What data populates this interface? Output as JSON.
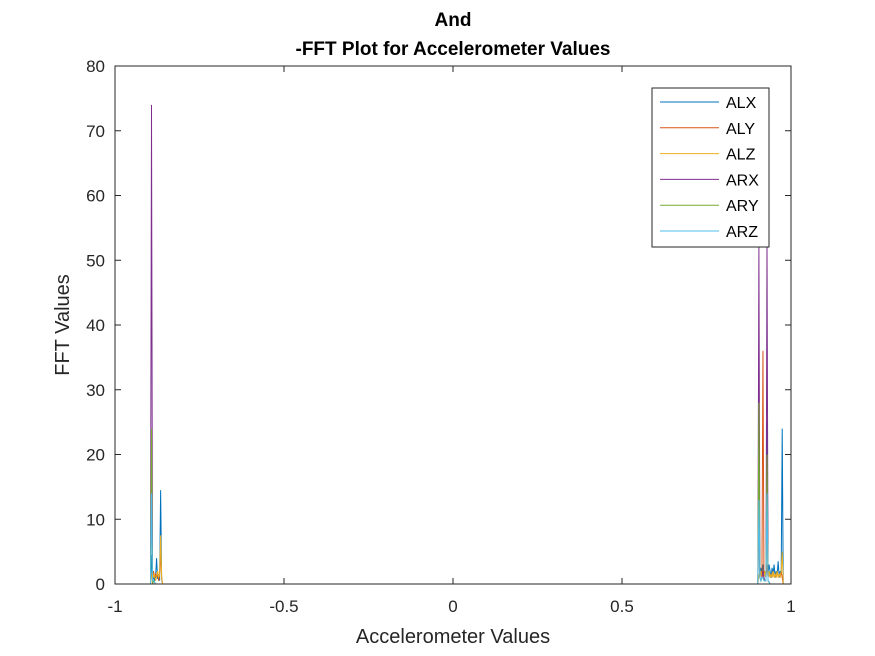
{
  "chart_data": {
    "type": "line",
    "title_lines": [
      "And",
      "-FFT Plot for Accelerometer Values"
    ],
    "xlabel": "Accelerometer Values",
    "ylabel": "FFT Values",
    "xlim": [
      -1,
      1
    ],
    "ylim": [
      0,
      80
    ],
    "xticks": [
      -1,
      -0.5,
      0,
      0.5,
      1
    ],
    "xtick_labels": [
      "-1",
      "-0.5",
      "0",
      "0.5",
      "1"
    ],
    "yticks": [
      0,
      10,
      20,
      30,
      40,
      50,
      60,
      70,
      80
    ],
    "ytick_labels": [
      "0",
      "10",
      "20",
      "30",
      "40",
      "50",
      "60",
      "70",
      "80"
    ],
    "grid": false,
    "legend": "top-right",
    "series": [
      {
        "name": "ALX",
        "color": "#0072BD",
        "x": [
          -0.895,
          -0.892,
          -0.889,
          -0.886,
          -0.883,
          -0.88,
          -0.877,
          -0.874,
          -0.871,
          -0.868,
          -0.865,
          -0.862,
          -0.859,
          0.902,
          0.905,
          0.908,
          0.911,
          0.914,
          0.917,
          0.92,
          0.923,
          0.926,
          0.929,
          0.932,
          0.935,
          0.938,
          0.941,
          0.944,
          0.947,
          0.95,
          0.953,
          0.956,
          0.959,
          0.962,
          0.965,
          0.968,
          0.971,
          0.974,
          0.977
        ],
        "y": [
          0,
          4.5,
          0.5,
          1.2,
          0.6,
          1.0,
          4.0,
          0.8,
          1.5,
          0.5,
          14.5,
          0.7,
          0,
          0,
          17,
          1.5,
          2.5,
          1.0,
          3.0,
          1.5,
          2.0,
          1.0,
          25,
          1.5,
          3.0,
          2.0,
          1.0,
          2.5,
          1.5,
          3.0,
          1.0,
          2.0,
          1.5,
          3.5,
          1.0,
          2.0,
          1.5,
          24,
          0
        ]
      },
      {
        "name": "ALY",
        "color": "#D95319",
        "x": [
          -0.895,
          -0.892,
          -0.889,
          -0.886,
          -0.883,
          -0.88,
          -0.877,
          -0.874,
          -0.871,
          -0.868,
          -0.865,
          -0.862,
          -0.859,
          0.902,
          0.905,
          0.908,
          0.911,
          0.914,
          0.917,
          0.92,
          0.923,
          0.926,
          0.929,
          0.932,
          0.935,
          0.938,
          0.941,
          0.944,
          0.947,
          0.95,
          0.953,
          0.956,
          0.959,
          0.962,
          0.965,
          0.968,
          0.971,
          0.974,
          0.977
        ],
        "y": [
          0,
          1.5,
          0.8,
          2.0,
          1.0,
          1.5,
          1.0,
          2.0,
          0.5,
          1.5,
          5.0,
          1.0,
          0,
          0,
          10,
          1.0,
          2.0,
          1.0,
          36,
          1.0,
          2.0,
          1.0,
          3.0,
          1.0,
          2.0,
          1.0,
          1.5,
          1.0,
          2.0,
          1.0,
          1.5,
          1.0,
          2.0,
          1.0,
          1.5,
          1.0,
          2.0,
          1.0,
          0
        ]
      },
      {
        "name": "ALZ",
        "color": "#EDB120",
        "x": [
          -0.895,
          -0.892,
          -0.889,
          -0.886,
          -0.883,
          -0.88,
          -0.877,
          -0.874,
          -0.871,
          -0.868,
          -0.865,
          -0.862,
          -0.859,
          0.902,
          0.905,
          0.908,
          0.911,
          0.914,
          0.917,
          0.92,
          0.923,
          0.926,
          0.929,
          0.932,
          0.935,
          0.938,
          0.941,
          0.944,
          0.947,
          0.95,
          0.953,
          0.956,
          0.959,
          0.962,
          0.965,
          0.968,
          0.971,
          0.974,
          0.977
        ],
        "y": [
          0,
          1.0,
          2.0,
          1.0,
          1.5,
          0.5,
          1.0,
          2.0,
          1.0,
          1.5,
          7.5,
          1.0,
          0,
          0,
          1.5,
          1.0,
          2.0,
          1.0,
          1.5,
          1.0,
          2.0,
          1.0,
          12,
          1.0,
          2.0,
          1.0,
          1.5,
          1.0,
          2.0,
          1.0,
          1.5,
          1.0,
          2.0,
          1.0,
          1.5,
          1.0,
          2.0,
          5.0,
          0
        ]
      },
      {
        "name": "ARX",
        "color": "#7E2F8E",
        "x": [
          -0.895,
          -0.892,
          -0.889,
          -0.886,
          -0.883,
          -0.88,
          0.902,
          0.905,
          0.908,
          0.911,
          0.914,
          0.917,
          0.92,
          0.923,
          0.926,
          0.929,
          0.932,
          0.935,
          0.938
        ],
        "y": [
          0,
          74,
          0,
          0.5,
          0.3,
          0,
          0,
          52,
          1.0,
          0.5,
          1.0,
          2.0,
          1.0,
          0.5,
          0.5,
          53,
          0.5,
          0.3,
          0
        ]
      },
      {
        "name": "ARY",
        "color": "#77AC30",
        "x": [
          -0.895,
          -0.892,
          -0.889,
          -0.886,
          -0.883,
          -0.88,
          0.902,
          0.905,
          0.908,
          0.911,
          0.914,
          0.917,
          0.92,
          0.923,
          0.926,
          0.929,
          0.932,
          0.935,
          0.938
        ],
        "y": [
          0,
          24,
          0,
          0.5,
          0.3,
          0,
          0,
          28,
          1.0,
          0.5,
          1.0,
          1.0,
          0.5,
          0.5,
          0.5,
          20,
          0.5,
          0.3,
          0
        ]
      },
      {
        "name": "ARZ",
        "color": "#4DBEEE",
        "x": [
          -0.895,
          -0.892,
          -0.889,
          -0.886,
          -0.883,
          -0.88,
          0.902,
          0.905,
          0.908,
          0.911,
          0.914,
          0.917,
          0.92,
          0.923,
          0.926,
          0.929,
          0.932,
          0.935,
          0.938
        ],
        "y": [
          0,
          14,
          0.5,
          0.5,
          0.3,
          0,
          0,
          13,
          1.0,
          0.5,
          1.0,
          1.0,
          0.5,
          0.5,
          0.5,
          14,
          0.5,
          0.3,
          0
        ]
      }
    ]
  }
}
